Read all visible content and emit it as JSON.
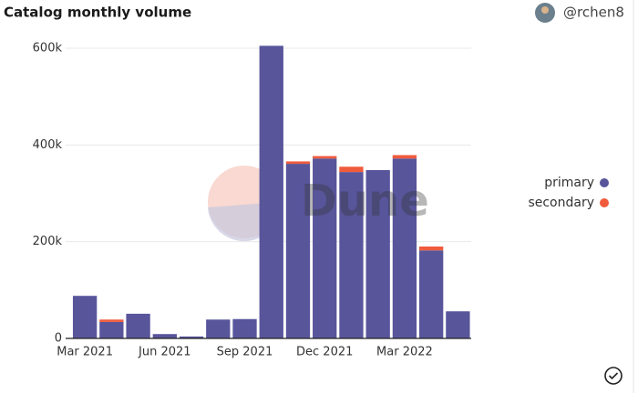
{
  "header": {
    "title": "Catalog monthly volume",
    "user": "@rchen8"
  },
  "watermark": "Dune",
  "chart_data": {
    "type": "stacked-bar",
    "categories": [
      "Mar 2021",
      null,
      null,
      "Jun 2021",
      null,
      null,
      "Sep 2021",
      null,
      null,
      "Dec 2021",
      null,
      null,
      "Mar 2022",
      null,
      null
    ],
    "series": [
      {
        "name": "primary",
        "color": "#58559b",
        "values": [
          88000,
          34000,
          51000,
          9000,
          4000,
          39000,
          40000,
          605000,
          361000,
          372000,
          344000,
          348000,
          372000,
          182000,
          56000
        ]
      },
      {
        "name": "secondary",
        "color": "#ef5b3c",
        "values": [
          0,
          5000,
          0,
          0,
          0,
          0,
          0,
          0,
          5000,
          5000,
          11000,
          0,
          7000,
          8000,
          0
        ]
      }
    ],
    "ylim": [
      0,
      600000
    ],
    "yticks": [
      0,
      {
        "value": 200000,
        "label": "200k"
      },
      {
        "value": 400000,
        "label": "400k"
      },
      {
        "value": 600000,
        "label": "600k"
      }
    ],
    "grid": true,
    "legend": "right"
  }
}
